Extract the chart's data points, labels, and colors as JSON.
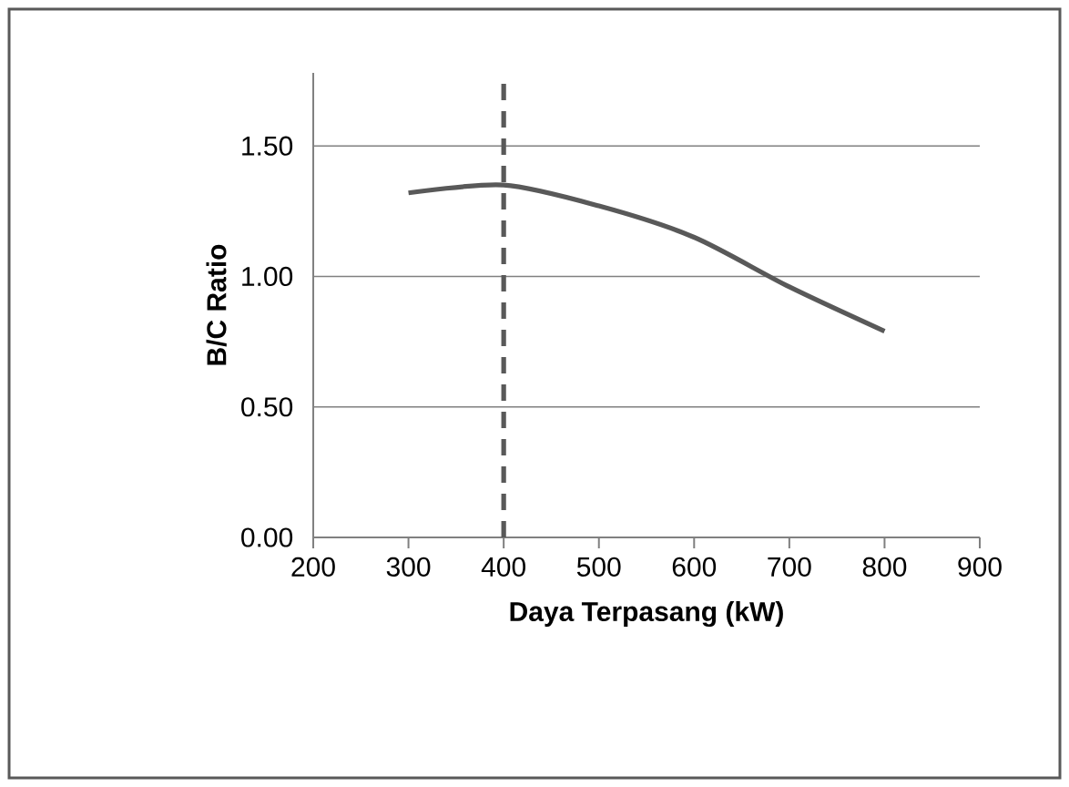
{
  "chart_data": {
    "type": "line",
    "xlabel": "Daya Terpasang (kW)",
    "ylabel": "B/C Ratio",
    "x": [
      300,
      400,
      500,
      600,
      700,
      800
    ],
    "series": [
      {
        "color": "#595959",
        "values": [
          1.32,
          1.35,
          1.27,
          1.15,
          0.96,
          0.79
        ]
      }
    ],
    "xlim": [
      200,
      900
    ],
    "xticks": [
      200,
      300,
      400,
      500,
      600,
      700,
      800,
      900
    ],
    "ylim": [
      0,
      1.78
    ],
    "yticks": [
      {
        "value": 0,
        "label": "0.00"
      },
      {
        "value": 0.5,
        "label": "0.50"
      },
      {
        "value": 1,
        "label": "1.00"
      },
      {
        "value": 1.5,
        "label": "1.50"
      }
    ],
    "grid": "y",
    "marker": "none",
    "line_style": "solid",
    "ref_lines": [
      {
        "axis": "x",
        "value": 400,
        "color": "#595959",
        "line_style": "dashed"
      }
    ]
  }
}
